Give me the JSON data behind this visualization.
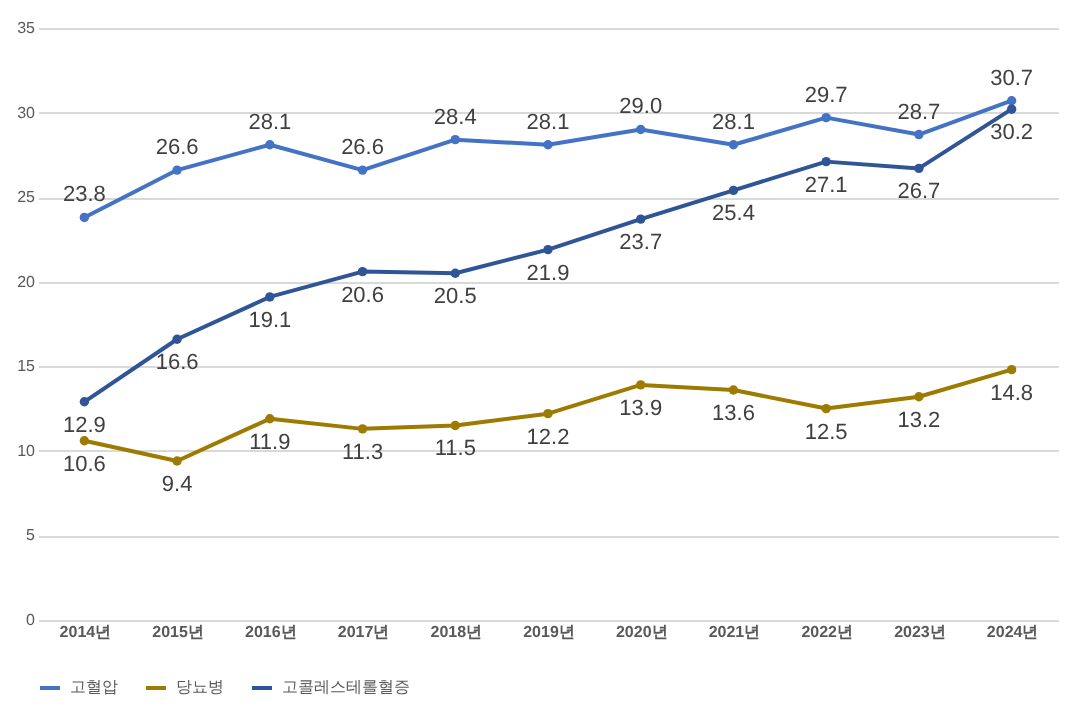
{
  "chart_data": {
    "type": "line",
    "categories": [
      "2014년",
      "2015년",
      "2016년",
      "2017년",
      "2018년",
      "2019년",
      "2020년",
      "2021년",
      "2022년",
      "2023년",
      "2024년"
    ],
    "series": [
      {
        "name": "고혈압",
        "color": "#4472c4",
        "values": [
          23.8,
          26.6,
          28.1,
          26.6,
          28.4,
          28.1,
          29.0,
          28.1,
          29.7,
          28.7,
          30.7
        ],
        "value_labels": [
          "23.8",
          "26.6",
          "28.1",
          "26.6",
          "28.4",
          "28.1",
          "29.0",
          "28.1",
          "29.7",
          "28.7",
          "30.7"
        ]
      },
      {
        "name": "당뇨병",
        "color": "#9c7b00",
        "values": [
          10.6,
          9.4,
          11.9,
          11.3,
          11.5,
          12.2,
          13.9,
          13.6,
          12.5,
          13.2,
          14.8
        ],
        "value_labels": [
          "10.6",
          "9.4",
          "11.9",
          "11.3",
          "11.5",
          "12.2",
          "13.9",
          "13.6",
          "12.5",
          "13.2",
          "14.8"
        ]
      },
      {
        "name": "고콜레스테롤혈증",
        "color": "#2f5597",
        "values": [
          12.9,
          16.6,
          19.1,
          20.6,
          20.5,
          21.9,
          23.7,
          25.4,
          27.1,
          26.7,
          30.2
        ],
        "value_labels": [
          "12.9",
          "16.6",
          "19.1",
          "20.6",
          "20.5",
          "21.9",
          "23.7",
          "25.4",
          "27.1",
          "26.7",
          "30.2"
        ]
      }
    ],
    "ylim": [
      0,
      35
    ],
    "yticks": [
      0,
      5,
      10,
      15,
      20,
      25,
      30,
      35
    ],
    "grid": "y",
    "legend": "bottom",
    "marker": "circle",
    "line_style": "solid"
  }
}
